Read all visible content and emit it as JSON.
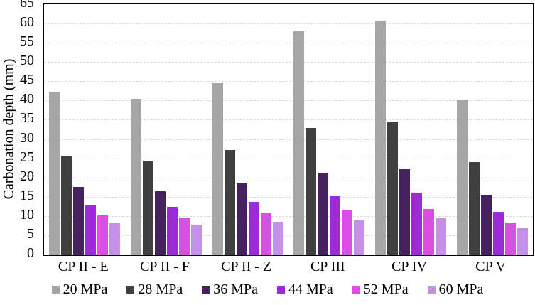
{
  "chart_data": {
    "type": "bar",
    "title": "",
    "xlabel": "",
    "ylabel": "Carbonation depth (mm)",
    "ylim": [
      0,
      65
    ],
    "ytick_step": 5,
    "yticks": [
      0,
      5,
      10,
      15,
      20,
      25,
      30,
      35,
      40,
      45,
      50,
      55,
      60,
      65
    ],
    "grid": "horizontal-dashed",
    "gridline_color": "#d9d9d9",
    "axis_border_color": "#000000",
    "legend_position": "bottom",
    "categories": [
      "CP II - E",
      "CP II - F",
      "CP II - Z",
      "CP III",
      "CP IV",
      "CP V"
    ],
    "series": [
      {
        "name": "20 MPa",
        "color": "#a6a6a6",
        "values": [
          42.2,
          40.4,
          44.5,
          58.0,
          60.5,
          40.2
        ]
      },
      {
        "name": "28 MPa",
        "color": "#3f3f3f",
        "values": [
          25.5,
          24.4,
          27.1,
          32.9,
          34.3,
          24.0
        ]
      },
      {
        "name": "36 MPa",
        "color": "#45215e",
        "values": [
          17.6,
          16.5,
          18.5,
          21.3,
          22.2,
          15.5
        ]
      },
      {
        "name": "44 MPa",
        "color": "#9a2bd6",
        "values": [
          12.9,
          12.4,
          13.7,
          15.2,
          16.0,
          11.1
        ]
      },
      {
        "name": "52 MPa",
        "color": "#d94fe2",
        "values": [
          10.1,
          9.6,
          10.7,
          11.5,
          11.9,
          8.4
        ]
      },
      {
        "name": "60 MPa",
        "color": "#c591e8",
        "values": [
          8.1,
          7.8,
          8.5,
          8.9,
          9.4,
          6.8
        ]
      }
    ]
  }
}
